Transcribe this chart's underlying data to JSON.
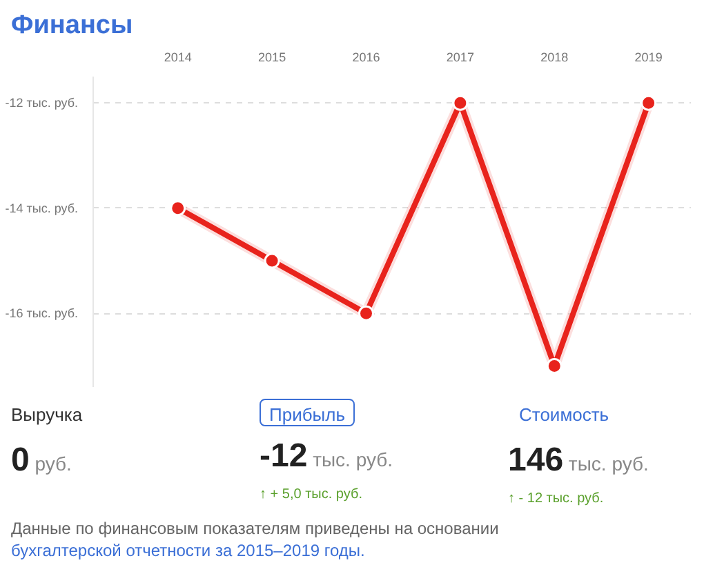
{
  "chart_data": {
    "type": "line",
    "title": "Финансы",
    "categories": [
      "2014",
      "2015",
      "2016",
      "2017",
      "2018",
      "2019"
    ],
    "series": [
      {
        "color": "#e8231c",
        "values": [
          -14,
          -15,
          -16,
          -12,
          -17,
          -12
        ]
      }
    ],
    "ylim": [
      -17.4,
      -11.5
    ],
    "yticks": [
      {
        "value": -16,
        "label": "-16 тыс. руб."
      },
      {
        "value": -14,
        "label": "-14 тыс. руб."
      },
      {
        "value": -12,
        "label": "-12 тыс. руб."
      }
    ],
    "grid": "y",
    "marker": "circle",
    "line_style": "solid",
    "annotations": [
      "Выручка",
      "0 руб.",
      "Прибыль",
      "-12 тыс. руб.",
      "↑ + 5,0 тыс. руб.",
      "Стоимость",
      "146 тыс. руб.",
      "↑ - 12 тыс. руб.",
      "Данные по финансовым показателям приведены на основании",
      "бухгалтерской отчетности за 2015–2019 годы."
    ]
  }
}
